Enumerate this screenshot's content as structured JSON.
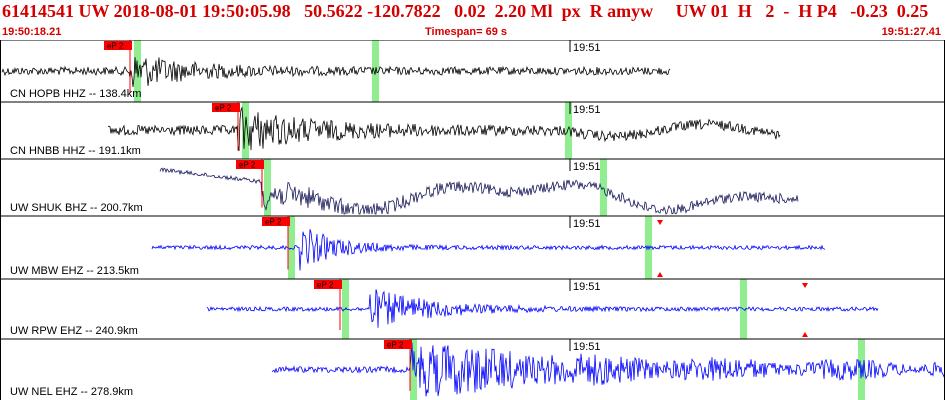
{
  "header": {
    "summary": "61414541 UW 2018-08-01 19:50:05.98   50.5622 -120.7822   0.02  2.20 Ml  px  R amyw     UW 01  H   2  -  H P4   -0.23  0.25",
    "start_time": "19:50:18.21",
    "timespan": "Timespan=  69 s",
    "end_time": "19:51:27.41"
  },
  "colors": {
    "header_text": "#d40000",
    "pick_fill": "#ff0000",
    "window_marker": "#90ee90",
    "black_trace": "#000000",
    "navy_trace": "#1a1a5c",
    "blue_trace": "#0000ff"
  },
  "tick_label": "19:51",
  "traces": [
    {
      "label": "CN HOPB HHZ -- 138.4km",
      "pick": "eP 2",
      "color": "black"
    },
    {
      "label": "CN HNBB HHZ -- 191.1km",
      "pick": "eP 2",
      "color": "black"
    },
    {
      "label": "UW SHUK BHZ -- 200.7km",
      "pick": "eP 2",
      "color": "navy"
    },
    {
      "label": "UW MBW EHZ -- 213.5km",
      "pick": "eP 2",
      "color": "blue"
    },
    {
      "label": "UW RPW EHZ -- 240.9km",
      "pick": "eP 2",
      "color": "blue"
    },
    {
      "label": "UW NEL EHZ -- 278.9km",
      "pick": "eP 2",
      "color": "blue"
    }
  ]
}
